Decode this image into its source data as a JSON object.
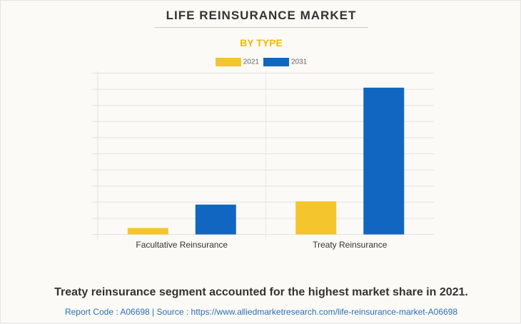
{
  "title": "LIFE REINSURANCE MARKET",
  "subtitle": "BY TYPE",
  "footer": "Treaty reinsurance segment accounted for the highest market share in 2021.",
  "source": "Report Code : A06698  |  Source : https://www.alliedmarketresearch.com/life-reinsurance-market-A06698",
  "chart_data": {
    "type": "bar",
    "categories": [
      "Facultative Reinsurance",
      "Treaty Reinsurance"
    ],
    "series": [
      {
        "name": "2021",
        "color": "#f5c52e",
        "values": [
          0.4,
          2.05
        ]
      },
      {
        "name": "2031",
        "color": "#1166c2",
        "values": [
          1.85,
          9.1
        ]
      }
    ],
    "ylim": [
      0,
      10
    ],
    "grid": true,
    "legend": "top",
    "y_tick_labels_shown": false
  }
}
